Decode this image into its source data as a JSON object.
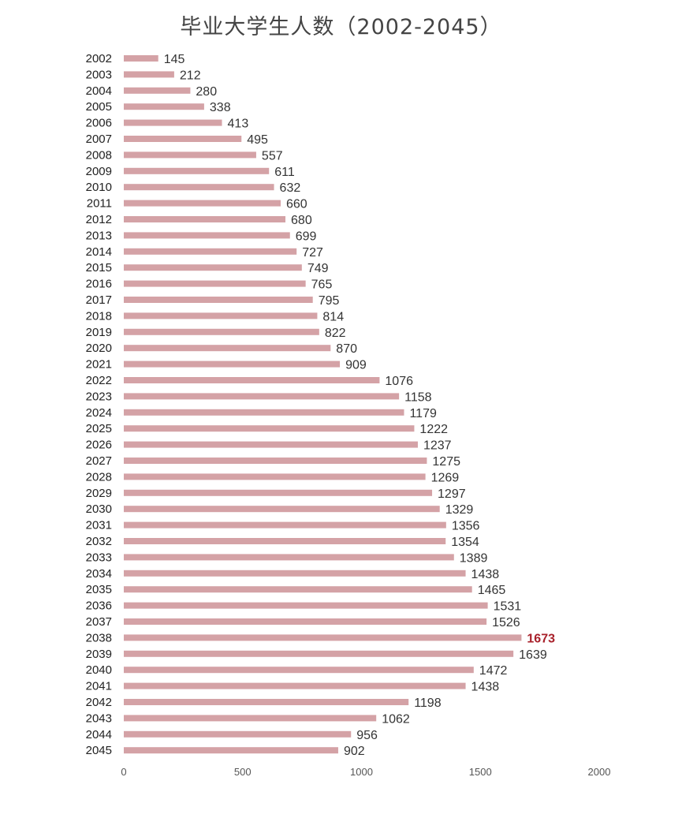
{
  "chart_data": {
    "type": "bar",
    "orientation": "horizontal",
    "title": "毕业大学生人数（2002-2045）",
    "xlabel": "",
    "ylabel": "",
    "xlim": [
      0,
      2000
    ],
    "x_ticks": [
      "0",
      "500",
      "1000",
      "1500",
      "2000"
    ],
    "grid": false,
    "legend": "none",
    "bar_color": "#d4a2a6",
    "highlight_color": "#a8202a",
    "highlight_category": "2038",
    "categories": [
      "2002",
      "2003",
      "2004",
      "2005",
      "2006",
      "2007",
      "2008",
      "2009",
      "2010",
      "2011",
      "2012",
      "2013",
      "2014",
      "2015",
      "2016",
      "2017",
      "2018",
      "2019",
      "2020",
      "2021",
      "2022",
      "2023",
      "2024",
      "2025",
      "2026",
      "2027",
      "2028",
      "2029",
      "2030",
      "2031",
      "2032",
      "2033",
      "2034",
      "2035",
      "2036",
      "2037",
      "2038",
      "2039",
      "2040",
      "2041",
      "2042",
      "2043",
      "2044",
      "2045"
    ],
    "values": [
      145,
      212,
      280,
      338,
      413,
      495,
      557,
      611,
      632,
      660,
      680,
      699,
      727,
      749,
      765,
      795,
      814,
      822,
      870,
      909,
      1076,
      1158,
      1179,
      1222,
      1237,
      1275,
      1269,
      1297,
      1329,
      1356,
      1354,
      1389,
      1438,
      1465,
      1531,
      1526,
      1673,
      1639,
      1472,
      1438,
      1198,
      1062,
      956,
      902
    ]
  }
}
